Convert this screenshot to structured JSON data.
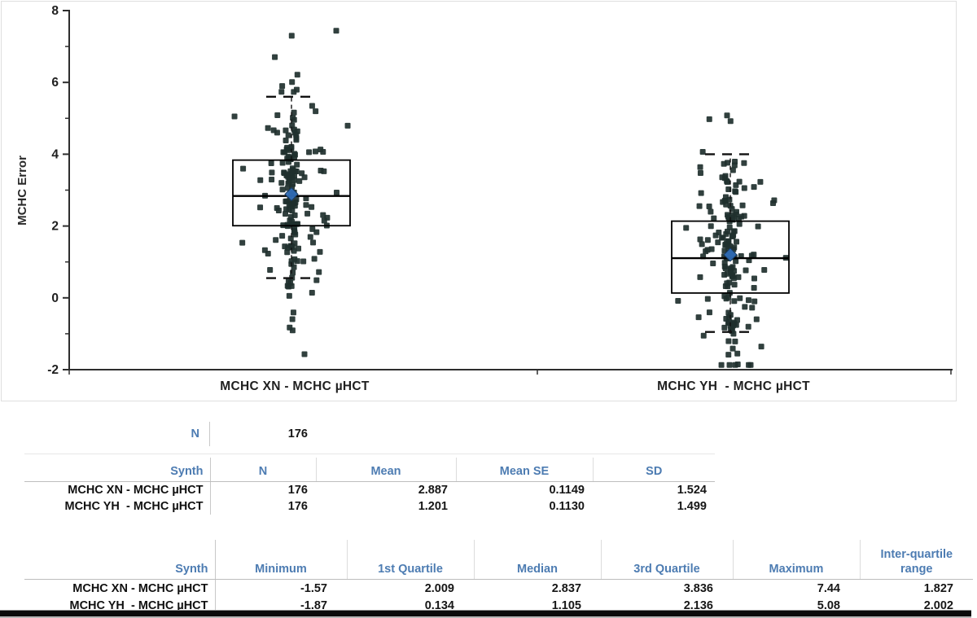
{
  "chart_data": {
    "type": "scatter",
    "overlay": "boxplot",
    "title": "",
    "xlabel": "",
    "ylabel": "MCHC Error",
    "ylim": [
      -2,
      8
    ],
    "yticks": [
      8,
      6,
      4,
      2,
      0,
      -2
    ],
    "grid": false,
    "legend": false,
    "marker": "square",
    "categories": [
      "MCHC XN - MCHC µHCT",
      "MCHC YH  - MCHC µHCT"
    ],
    "series": [
      {
        "name": "MCHC XN - MCHC µHCT",
        "n": 176,
        "mean": 2.887,
        "mean_se": 0.1149,
        "sd": 1.524,
        "min": -1.57,
        "q1": 2.009,
        "median": 2.837,
        "q3": 3.836,
        "max": 7.44,
        "iqr": 1.827,
        "whisker_high": 5.6,
        "whisker_low": 0.55
      },
      {
        "name": "MCHC YH  - MCHC µHCT",
        "n": 176,
        "mean": 1.201,
        "mean_se": 0.113,
        "sd": 1.499,
        "min": -1.87,
        "q1": 0.134,
        "median": 1.105,
        "q3": 2.136,
        "max": 5.08,
        "iqr": 2.002,
        "whisker_high": 4.0,
        "whisker_low": -0.95
      }
    ],
    "colors": {
      "point": "#20302e",
      "mean_marker": "#2f6cb5",
      "mean_marker_edge": "#16395f",
      "box_line": "#000000",
      "axis": "#2d2d2d",
      "tick_label": "#1f1f1f",
      "panel_border": "#dfdfdf"
    }
  },
  "n_summary": {
    "label": "N",
    "value": "176"
  },
  "moments_table": {
    "columns": [
      "Synth",
      "N",
      "Mean",
      "Mean SE",
      "SD"
    ],
    "rows": [
      {
        "label": "MCHC XN - MCHC µHCT",
        "n": "176",
        "mean": "2.887",
        "mean_se": "0.1149",
        "sd": "1.524"
      },
      {
        "label": "MCHC YH  - MCHC µHCT",
        "n": "176",
        "mean": "1.201",
        "mean_se": "0.1130",
        "sd": "1.499"
      }
    ]
  },
  "quantiles_table": {
    "columns": [
      "Synth",
      "Minimum",
      "1st Quartile",
      "Median",
      "3rd Quartile",
      "Maximum",
      "Inter-quartile range"
    ],
    "rows": [
      {
        "label": "MCHC XN - MCHC µHCT",
        "min": "-1.57",
        "q1": "2.009",
        "median": "2.837",
        "q3": "3.836",
        "max": "7.44",
        "iqr": "1.827"
      },
      {
        "label": "MCHC YH  - MCHC µHCT",
        "min": "-1.87",
        "q1": "0.134",
        "median": "1.105",
        "q3": "2.136",
        "max": "5.08",
        "iqr": "2.002"
      }
    ]
  }
}
